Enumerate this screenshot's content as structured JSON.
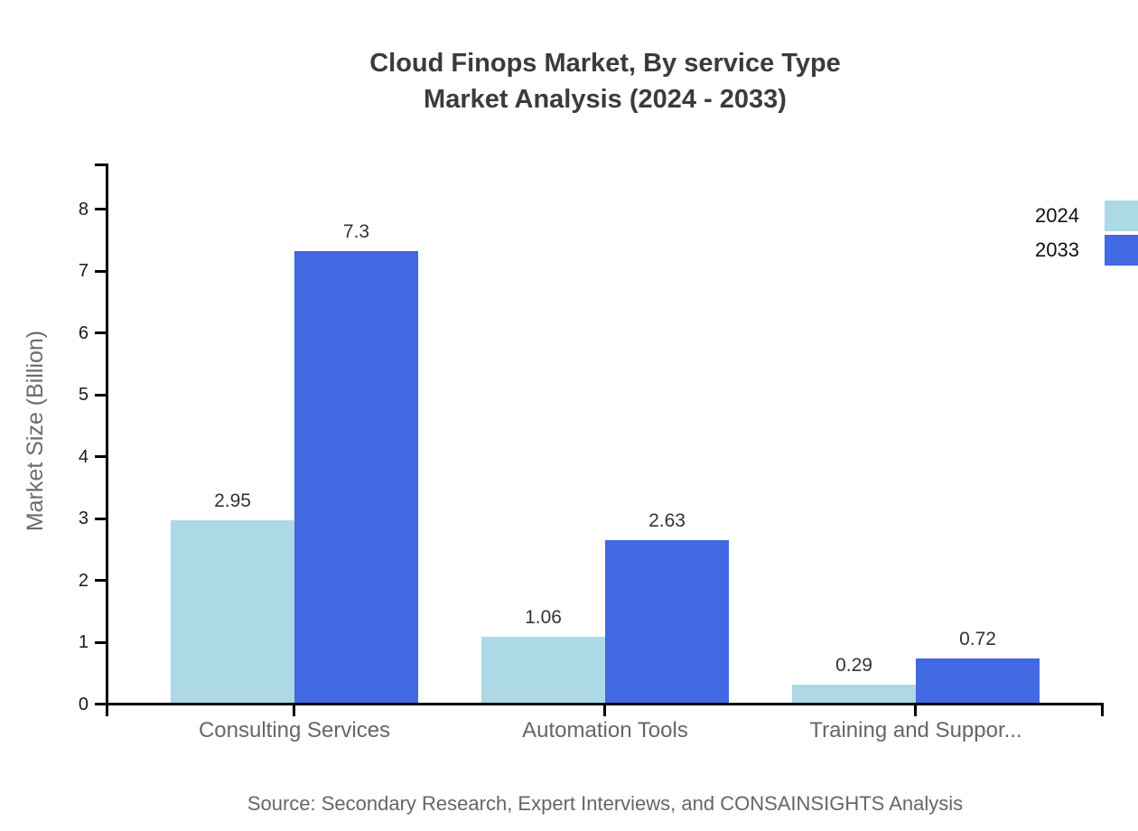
{
  "chart_data": {
    "type": "bar",
    "title_line1": "Cloud Finops Market, By service Type",
    "title_line2": "Market Analysis (2024 - 2033)",
    "categories": [
      "Consulting Services",
      "Automation Tools",
      "Training and Suppor..."
    ],
    "series": [
      {
        "name": "2024",
        "color": "#ADD8E6",
        "values": [
          2.95,
          1.06,
          0.29
        ]
      },
      {
        "name": "2033",
        "color": "#4169E1",
        "values": [
          7.3,
          2.63,
          0.72
        ]
      }
    ],
    "xlabel": "",
    "ylabel": "Market Size (Billion)",
    "ylim": [
      0,
      8.75
    ],
    "yticks": [
      0,
      1,
      2,
      3,
      4,
      5,
      6,
      7,
      8
    ],
    "grid": false,
    "legend_position": "top-right",
    "bar_value_labels": true,
    "source_note": "Source: Secondary Research, Expert Interviews, and CONSAINSIGHTS Analysis"
  },
  "colors": {
    "axis": "#000000",
    "title_text": "#3b3b3b",
    "muted_text": "#666666",
    "background": "#ffffff"
  }
}
